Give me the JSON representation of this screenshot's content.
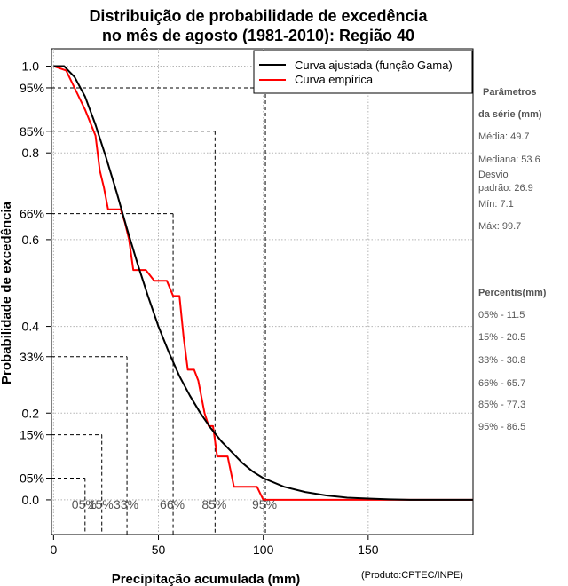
{
  "chart_data": {
    "type": "line",
    "title_line1": "Distribuição de probabilidade de excedência",
    "title_line2": "no mês de agosto (1981-2010): Região 40",
    "xlabel": "Precipitação acumulada (mm)",
    "ylabel": "Probabilidade de excedência",
    "credit": "(Produto:CPTEC/INPE)",
    "xlim": [
      -1,
      200
    ],
    "ylim": [
      -0.08,
      1.04
    ],
    "x_ticks": [
      0,
      50,
      100,
      150
    ],
    "x_tick_labels": [
      "0",
      "50",
      "100",
      "150"
    ],
    "y_ticks": [
      0.0,
      0.2,
      0.4,
      0.6,
      0.8,
      1.0
    ],
    "y_tick_labels": [
      "0.0",
      "0.2",
      "0.4",
      "0.6",
      "0.8",
      "1.0"
    ],
    "y_pct_ticks": [
      0.05,
      0.15,
      0.33,
      0.66,
      0.85,
      0.95
    ],
    "y_pct_labels": [
      "05%",
      "15%",
      "33%",
      "66%",
      "85%",
      "95%"
    ],
    "grid": true,
    "legend": {
      "position": "top-right",
      "entries": [
        "Curva ajustada (função Gama)",
        "Curva empírica"
      ]
    },
    "series": [
      {
        "name": "Curva ajustada (função Gama)",
        "color": "#000000",
        "x": [
          0,
          5,
          7,
          10,
          15,
          20,
          25,
          30,
          35,
          40,
          45,
          50,
          55,
          60,
          65,
          70,
          75,
          80,
          85,
          90,
          95,
          100,
          110,
          120,
          130,
          140,
          150,
          160,
          170,
          180,
          190,
          200
        ],
        "y": [
          1.0,
          1.0,
          0.99,
          0.975,
          0.93,
          0.865,
          0.79,
          0.71,
          0.625,
          0.545,
          0.47,
          0.4,
          0.34,
          0.285,
          0.24,
          0.2,
          0.165,
          0.135,
          0.11,
          0.085,
          0.065,
          0.05,
          0.03,
          0.018,
          0.01,
          0.005,
          0.003,
          0.001,
          0.0,
          0.0,
          0.0,
          0.0
        ]
      },
      {
        "name": "Curva empírica",
        "color": "#ff0000",
        "x": [
          0,
          6,
          10,
          15,
          20,
          22,
          24,
          26,
          32,
          34,
          36,
          38,
          40,
          42,
          44,
          48,
          54,
          57,
          60,
          62,
          64,
          66,
          67,
          69,
          72,
          74,
          76,
          78,
          80,
          83,
          86,
          88,
          90,
          97,
          100,
          102,
          110,
          130,
          150,
          170,
          190,
          200
        ],
        "y": [
          1.0,
          0.99,
          0.95,
          0.9,
          0.84,
          0.76,
          0.72,
          0.67,
          0.67,
          0.64,
          0.6,
          0.53,
          0.53,
          0.53,
          0.53,
          0.505,
          0.505,
          0.47,
          0.47,
          0.375,
          0.3,
          0.3,
          0.3,
          0.275,
          0.2,
          0.17,
          0.17,
          0.1,
          0.1,
          0.1,
          0.03,
          0.03,
          0.03,
          0.03,
          0.0,
          0.0,
          0.0,
          0.0,
          0.0,
          0.0,
          0.0,
          0.0
        ]
      }
    ],
    "percentile_lines": [
      {
        "label": "05%",
        "p": 0.05,
        "x": 15
      },
      {
        "label": "15%",
        "p": 0.15,
        "x": 23
      },
      {
        "label": "33%",
        "p": 0.33,
        "x": 35
      },
      {
        "label": "66%",
        "p": 0.66,
        "x": 57
      },
      {
        "label": "85%",
        "p": 0.85,
        "x": 77
      },
      {
        "label": "95%",
        "p": 0.95,
        "x": 101
      }
    ]
  },
  "stats_panel": {
    "heading1": "Parâmetros",
    "heading2": "da série (mm)",
    "mean": "Média: 49.7",
    "median": "Mediana: 53.6",
    "sd_line1": "Desvio",
    "sd_line2": "padrão: 26.9",
    "min": "Mín: 7.1",
    "max": "Máx: 99.7"
  },
  "percentiles_panel": {
    "heading": "Percentis(mm)",
    "items": [
      "05% - 11.5",
      "15% - 20.5",
      "33% - 30.8",
      "66% - 65.7",
      "85% - 77.3",
      "95% - 86.5"
    ]
  }
}
